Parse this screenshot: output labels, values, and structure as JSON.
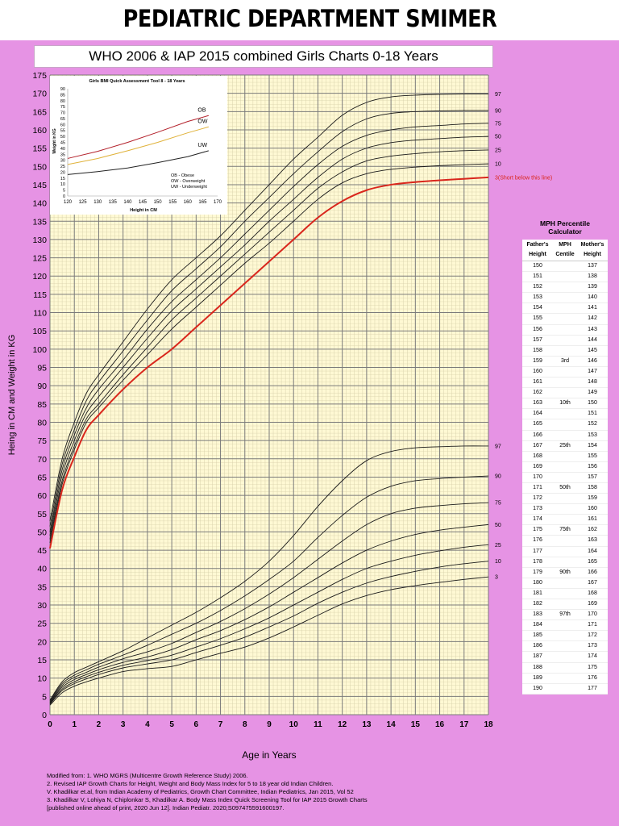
{
  "header": {
    "title": "PEDIATRIC DEPARTMENT SMIMER"
  },
  "subtitle": "WHO 2006 & IAP 2015 combined Girls Charts 0-18 Years",
  "colors": {
    "background": "#e693e4",
    "grid_bg": "#fff9d4",
    "grid_line": "#7a7a7a",
    "minor_grid": "#d8d2ac",
    "line": "#1a1a1a",
    "highlight": "#d9261c"
  },
  "chart_data": [
    {
      "type": "line",
      "title": "",
      "xlabel": "Age in Years",
      "ylabel": "Heing in CM and Weight in KG",
      "xlim": [
        0,
        18
      ],
      "ylim": [
        0,
        175
      ],
      "x_ticks": [
        "0",
        "1",
        "2",
        "3",
        "4",
        "5",
        "6",
        "7",
        "8",
        "9",
        "10",
        "11",
        "12",
        "13",
        "14",
        "15",
        "16",
        "17",
        "18"
      ],
      "y_ticks": [
        "0",
        "5",
        "10",
        "15",
        "20",
        "25",
        "30",
        "35",
        "40",
        "45",
        "50",
        "55",
        "60",
        "65",
        "70",
        "75",
        "80",
        "85",
        "90",
        "95",
        "100",
        "105",
        "110",
        "115",
        "120",
        "125",
        "130",
        "135",
        "140",
        "145",
        "150",
        "155",
        "160",
        "165",
        "170",
        "175"
      ],
      "grid": true,
      "x": [
        0,
        0.5,
        1,
        1.5,
        2,
        3,
        4,
        5,
        6,
        7,
        8,
        9,
        10,
        11,
        12,
        13,
        14,
        15,
        16,
        17,
        18
      ],
      "height_series": [
        {
          "name": "97",
          "values": [
            53,
            70,
            80,
            88,
            93,
            102,
            111,
            119,
            125,
            131,
            138,
            145,
            152,
            158,
            164,
            167.5,
            169,
            169.5,
            169.7,
            169.8,
            169.8
          ]
        },
        {
          "name": "90",
          "values": [
            51.5,
            68.5,
            78,
            86,
            91,
            99.5,
            108,
            116,
            122,
            128,
            135,
            141.5,
            148,
            154,
            159.5,
            163,
            164.5,
            165,
            165.2,
            165.3,
            165.3
          ]
        },
        {
          "name": "75",
          "values": [
            50,
            67,
            76.5,
            84,
            89,
            97,
            105.5,
            113,
            119,
            125,
            131.5,
            138,
            144.5,
            150.5,
            155.5,
            158.5,
            160,
            160.8,
            161.2,
            161.6,
            161.8
          ]
        },
        {
          "name": "50",
          "values": [
            49,
            65.5,
            75,
            82.5,
            87,
            95,
            103,
            110.5,
            116.5,
            122.5,
            128.5,
            135,
            141,
            147,
            152,
            155,
            156.5,
            157.2,
            157.6,
            158,
            158.2
          ]
        },
        {
          "name": "25",
          "values": [
            48,
            64,
            73.5,
            81,
            85,
            93,
            100.5,
            108,
            114,
            120,
            126,
            132,
            138,
            144,
            148.5,
            151.5,
            152.8,
            153.5,
            154,
            154.3,
            154.5
          ]
        },
        {
          "name": "10",
          "values": [
            47,
            63,
            72.5,
            80,
            84,
            91.5,
            98.5,
            105.5,
            111.5,
            117.5,
            123.5,
            129,
            135,
            141,
            145.5,
            148,
            149.2,
            149.8,
            150.2,
            150.5,
            150.7
          ]
        },
        {
          "name": "3(Short below this line)",
          "values": [
            45.5,
            61.5,
            70.5,
            78,
            82,
            89,
            95,
            100,
            106,
            112,
            118,
            124,
            130,
            136,
            140.5,
            143.5,
            145,
            145.7,
            146.2,
            146.6,
            147
          ]
        }
      ],
      "weight_series": [
        {
          "name": "97",
          "values": [
            4,
            9,
            11.5,
            13,
            14.5,
            17.5,
            21,
            24.5,
            28,
            32,
            36.5,
            42,
            49,
            57,
            64,
            69.5,
            72,
            73,
            73.3,
            73.5,
            73.5
          ]
        },
        {
          "name": "90",
          "values": [
            3.8,
            8.5,
            10.8,
            12.3,
            13.8,
            16.3,
            19,
            22,
            25,
            28.5,
            32.5,
            37,
            42,
            48.5,
            54.5,
            59.5,
            62.5,
            64,
            64.6,
            65,
            65.3
          ]
        },
        {
          "name": "75",
          "values": [
            3.5,
            8,
            10.2,
            11.6,
            13,
            15.3,
            17.2,
            19.5,
            22.5,
            25.5,
            29,
            33,
            37.5,
            42.5,
            47.5,
            52,
            55,
            56.5,
            57.2,
            57.7,
            58
          ]
        },
        {
          "name": "50",
          "values": [
            3.3,
            7.5,
            9.6,
            11,
            12.3,
            14.3,
            15.8,
            17.8,
            20.5,
            23,
            26,
            29.5,
            33.5,
            37.5,
            41.5,
            45,
            47.5,
            49.3,
            50.5,
            51.3,
            52
          ]
        },
        {
          "name": "25",
          "values": [
            3.1,
            7,
            9,
            10.4,
            11.6,
            13.5,
            14.8,
            16.3,
            18.5,
            20.8,
            23.5,
            26.5,
            30,
            33.5,
            37,
            40,
            42,
            43.6,
            44.8,
            45.8,
            46.5
          ]
        },
        {
          "name": "10",
          "values": [
            2.9,
            6.6,
            8.5,
            9.8,
            11,
            12.8,
            13.9,
            15,
            17,
            19,
            21.2,
            24,
            27,
            30.5,
            33.5,
            36,
            37.8,
            39.2,
            40.4,
            41.3,
            42
          ]
        },
        {
          "name": "3",
          "values": [
            2.6,
            6,
            7.8,
            9,
            10,
            11.8,
            12.6,
            13.2,
            15,
            16.8,
            18.5,
            21,
            24,
            27.2,
            30.3,
            32.6,
            34.2,
            35.3,
            36.2,
            37,
            37.7
          ]
        }
      ],
      "highlight_series": "3(Short below this line)"
    },
    {
      "type": "line",
      "title": "Girls BMI Quick Assessment Tool 8 - 18 Years",
      "xlabel": "Height in CM",
      "ylabel": "Weight in KG",
      "xlim": [
        120,
        170
      ],
      "ylim": [
        0,
        90
      ],
      "x_ticks": [
        "120",
        "125",
        "130",
        "135",
        "140",
        "145",
        "150",
        "155",
        "160",
        "165",
        "170"
      ],
      "y_ticks": [
        "0",
        "5",
        "10",
        "15",
        "20",
        "25",
        "30",
        "35",
        "40",
        "45",
        "50",
        "55",
        "60",
        "65",
        "70",
        "75",
        "80",
        "85",
        "90"
      ],
      "x": [
        120,
        130,
        140,
        150,
        160,
        167
      ],
      "series": [
        {
          "name": "OB",
          "values": [
            31.5,
            37.5,
            45,
            53.5,
            62.5,
            67.5
          ]
        },
        {
          "name": "OW",
          "values": [
            26.5,
            31.5,
            38,
            45,
            53,
            58
          ]
        },
        {
          "name": "UW",
          "values": [
            18,
            20.5,
            23.5,
            28,
            33,
            38
          ]
        }
      ],
      "legend": [
        "OB - Obese",
        "OW - Overweight",
        "UW - Underweight"
      ],
      "legend_position": "bottom-right"
    }
  ],
  "mph": {
    "title_line1": "MPH Percentile",
    "title_line2": "Calculator",
    "headers": [
      "Father's Height",
      "MPH Centile",
      "Mother's Height"
    ],
    "rows": [
      [
        "150",
        "",
        "137"
      ],
      [
        "151",
        "",
        "138"
      ],
      [
        "152",
        "",
        "139"
      ],
      [
        "153",
        "",
        "140"
      ],
      [
        "154",
        "",
        "141"
      ],
      [
        "155",
        "",
        "142"
      ],
      [
        "156",
        "",
        "143"
      ],
      [
        "157",
        "",
        "144"
      ],
      [
        "158",
        "",
        "145"
      ],
      [
        "159",
        "3rd",
        "146"
      ],
      [
        "160",
        "",
        "147"
      ],
      [
        "161",
        "",
        "148"
      ],
      [
        "162",
        "",
        "149"
      ],
      [
        "163",
        "10th",
        "150"
      ],
      [
        "164",
        "",
        "151"
      ],
      [
        "165",
        "",
        "152"
      ],
      [
        "166",
        "",
        "153"
      ],
      [
        "167",
        "25th",
        "154"
      ],
      [
        "168",
        "",
        "155"
      ],
      [
        "169",
        "",
        "156"
      ],
      [
        "170",
        "",
        "157"
      ],
      [
        "171",
        "50th",
        "158"
      ],
      [
        "172",
        "",
        "159"
      ],
      [
        "173",
        "",
        "160"
      ],
      [
        "174",
        "",
        "161"
      ],
      [
        "175",
        "75th",
        "162"
      ],
      [
        "176",
        "",
        "163"
      ],
      [
        "177",
        "",
        "164"
      ],
      [
        "178",
        "",
        "165"
      ],
      [
        "179",
        "90th",
        "166"
      ],
      [
        "180",
        "",
        "167"
      ],
      [
        "181",
        "",
        "168"
      ],
      [
        "182",
        "",
        "169"
      ],
      [
        "183",
        "97th",
        "170"
      ],
      [
        "184",
        "",
        "171"
      ],
      [
        "185",
        "",
        "172"
      ],
      [
        "186",
        "",
        "173"
      ],
      [
        "187",
        "",
        "174"
      ],
      [
        "188",
        "",
        "175"
      ],
      [
        "189",
        "",
        "176"
      ],
      [
        "190",
        "",
        "177"
      ]
    ]
  },
  "references": [
    "Modified from: 1. WHO MGRS (Multicentre Growth Reference Study) 2006.",
    "2. Revised IAP Growth Charts for Height, Weight and Body Mass Index for 5 to 18 year old Indian Children.",
    "V. Khadilkar et.al, from Indian Academy of Pediatrics, Growth Chart Committee, Indian Pediatrics, Jan 2015, Vol 52",
    "3. Khadilkar V, Lohiya N, Chiplonkar S, Khadilkar A. Body Mass Index Quick Screening Tool for IAP 2015 Growth Charts",
    " [published online ahead of print, 2020 Jun 12]. Indian Pediatr. 2020;S097475591600197."
  ]
}
